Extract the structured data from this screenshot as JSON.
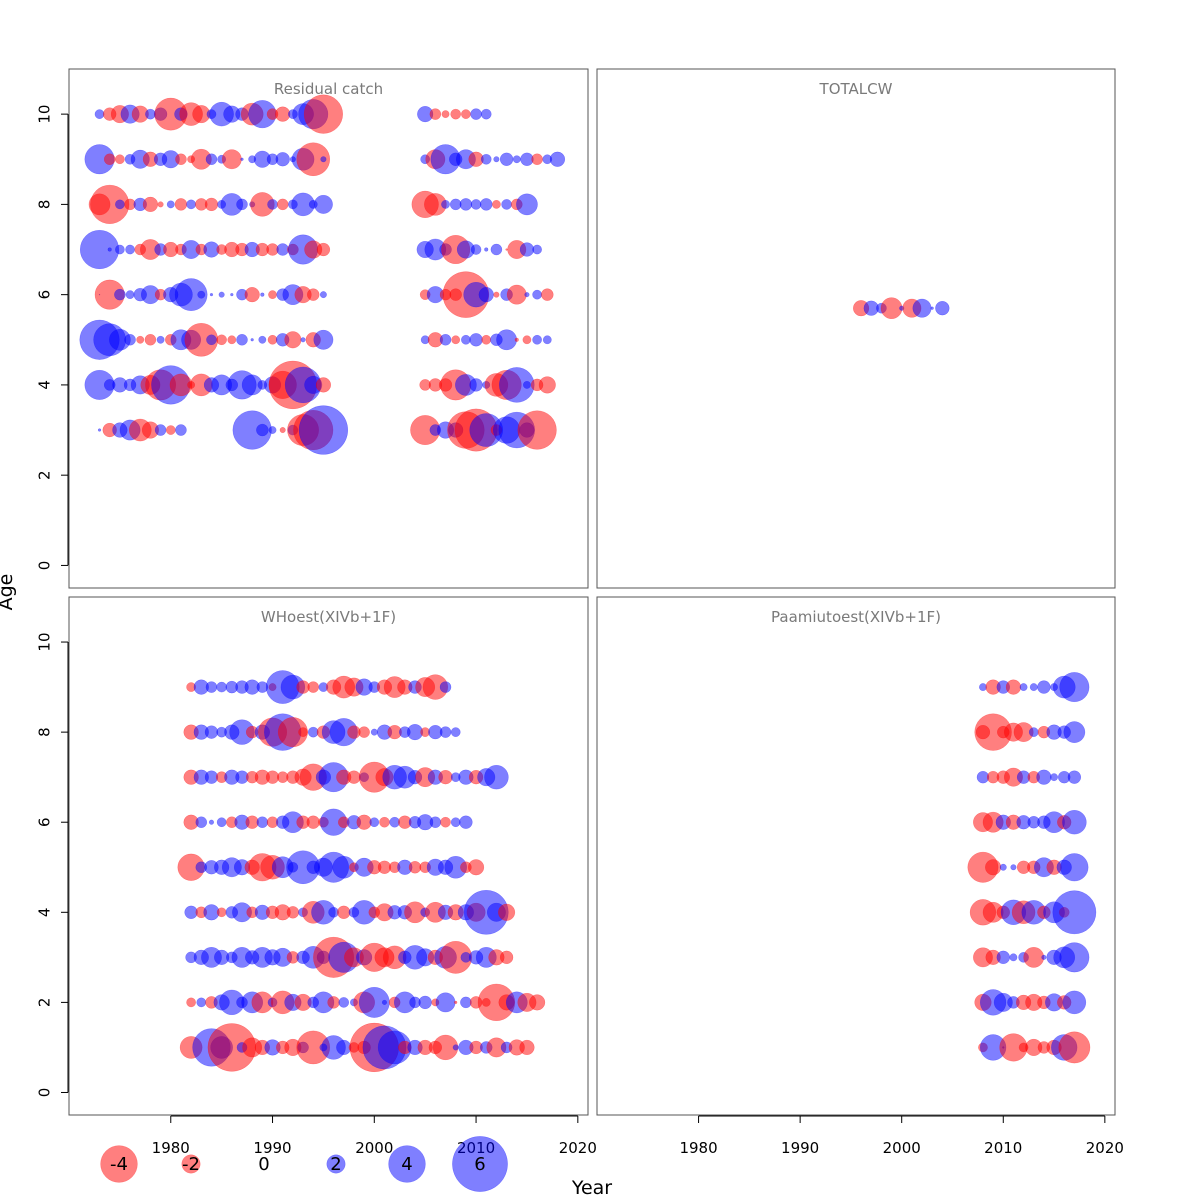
{
  "chart_data": {
    "type": "scatter",
    "subtype": "bubble",
    "xlabel": "Year",
    "ylabel": "Age",
    "xlim": [
      1970,
      2021
    ],
    "ylim": [
      -0.5,
      11
    ],
    "x_ticks": [
      1980,
      1990,
      2000,
      2010,
      2020
    ],
    "y_ticks": [
      0,
      2,
      4,
      6,
      8,
      10
    ],
    "colors": {
      "negative": "#ff0000",
      "positive": "#0000ff",
      "opacity": 0.5
    },
    "layout": "2x2 panels",
    "legend": {
      "position": "bottom-left",
      "entries": [
        {
          "label": "-4",
          "value": -4
        },
        {
          "label": "-2",
          "value": -2
        },
        {
          "label": "0",
          "value": 0
        },
        {
          "label": "2",
          "value": 2
        },
        {
          "label": "4",
          "value": 4
        },
        {
          "label": "6",
          "value": 6
        }
      ]
    },
    "panels": [
      {
        "title": "Residual catch",
        "ages": [
          3,
          4,
          5,
          6,
          7,
          8,
          9,
          10
        ],
        "segments": [
          [
            1973,
            1995
          ],
          [
            2005,
            2018
          ]
        ],
        "residuals": [
          [
            0.3,
            -1.5,
            1.6,
            2.2,
            -2.4,
            -1.8,
            1.2,
            -1.0,
            1.2,
            0,
            0,
            0,
            0,
            0,
            0,
            4.2,
            1.3,
            0.8,
            -0.6,
            1.1,
            -3.4,
            -4.3,
            5.3,
            -3.2,
            1.2,
            1.8,
            1.6,
            -4.0,
            -4.6,
            3.6,
            -1.2,
            2.9,
            3.9,
            1.6,
            -4.2
          ],
          [
            3.2,
            1.2,
            1.6,
            1.3,
            2.0,
            -2.1,
            -3.3,
            4.2,
            -2.4,
            -0.8,
            -2.4,
            1.6,
            2.2,
            1.3,
            3.1,
            2.2,
            1.0,
            1.8,
            -3.0,
            -5.2,
            3.9,
            1.9,
            -1.6,
            -1.2,
            -1.4,
            -1.4,
            -3.3,
            2.3,
            1.4,
            0.8,
            -2.5,
            -3.2,
            3.8,
            0.8,
            -1.3,
            -1.8
          ],
          [
            4.3,
            3.5,
            2.3,
            1.2,
            -0.8,
            -1.2,
            0.8,
            -1.2,
            2.2,
            2.1,
            -3.6,
            1.1,
            -1.1,
            -0.9,
            1.2,
            0.3,
            0.8,
            -1.0,
            1.4,
            -1.8,
            0.5,
            -1.6,
            2.1,
            0.9,
            -1.6,
            1.2,
            -0.9,
            1.0,
            1.4,
            -1.0,
            1.3,
            2.2,
            -0.4,
            -0.9,
            1.0,
            0.9
          ],
          [
            0.1,
            -3.2,
            1.2,
            0.9,
            1.4,
            2.0,
            -1.2,
            1.6,
            2.5,
            3.5,
            0.8,
            0.3,
            0.6,
            0.3,
            1.2,
            -1.6,
            0.4,
            -0.9,
            1.3,
            2.2,
            -1.8,
            -1.3,
            0.7,
            -1.1,
            1.8,
            -1.2,
            -1.3,
            -5.0,
            2.7,
            1.6,
            -0.6,
            1.3,
            -2.1,
            0.5,
            1.0,
            -1.3
          ],
          [
            4.2,
            0.4,
            1.0,
            1.0,
            -1.2,
            -2.2,
            1.3,
            -1.6,
            -1.2,
            2.0,
            -1.2,
            1.7,
            -1.1,
            -1.6,
            -1.4,
            1.6,
            -1.4,
            -1.3,
            1.3,
            -1.2,
            3.2,
            -1.9,
            -1.4,
            1.8,
            2.3,
            1.3,
            -3.1,
            1.9,
            1.1,
            0.4,
            1.2,
            -0.2,
            -2.0,
            1.5,
            1.0
          ],
          [
            -2.3,
            -4.2,
            1.0,
            -1.2,
            1.4,
            -1.6,
            -0.6,
            0.8,
            -1.3,
            1.0,
            -1.3,
            -1.4,
            0.9,
            2.4,
            1.2,
            0.6,
            -2.6,
            1.1,
            -1.2,
            1.0,
            2.5,
            0.9,
            2.0,
            -2.9,
            -2.4,
            0.9,
            1.2,
            1.3,
            1.1,
            1.3,
            -0.9,
            1.1,
            -1.2,
            2.3
          ],
          [
            3.2,
            -1.2,
            -1.0,
            1.1,
            2.0,
            -1.6,
            1.4,
            1.9,
            -1.2,
            -0.8,
            -2.2,
            1.2,
            0.9,
            -2.1,
            0.3,
            0.8,
            1.8,
            1.2,
            1.5,
            0.6,
            2.4,
            -3.6,
            0.6,
            1.0,
            -2.1,
            3.2,
            1.4,
            2.1,
            -1.6,
            1.1,
            0.6,
            1.4,
            0.8,
            1.4,
            -1.2,
            1.0,
            1.6
          ],
          [
            1.0,
            -1.4,
            -1.9,
            2.0,
            -1.8,
            1.1,
            1.4,
            -3.5,
            1.4,
            -2.5,
            -1.9,
            1.0,
            2.6,
            1.8,
            1.4,
            -2.4,
            3.0,
            -1.2,
            -1.6,
            1.0,
            2.3,
            3.2,
            -4.2,
            1.7,
            -1.2,
            -0.8,
            -1.1,
            -1.0,
            1.2,
            1.1
          ]
        ]
      },
      {
        "title": "TOTALCW",
        "ages": [
          5.7
        ],
        "segments": [
          [
            1996,
            2004
          ]
        ],
        "residuals": [
          [
            -1.7,
            1.6,
            1.1,
            -2.3,
            0.5,
            -2.0,
            2.0,
            0.3,
            1.5
          ]
        ]
      },
      {
        "title": "WHoest(XIVb+1F)",
        "ages": [
          1,
          2,
          3,
          4,
          5,
          6,
          7,
          8,
          9
        ],
        "segments": [
          [
            1982,
            2017
          ]
        ],
        "residuals": [
          [
            -2.4,
            0,
            4.1,
            2.4,
            -5.2,
            1.1,
            -2.1,
            -1.6,
            1.7,
            -1.4,
            -1.8,
            1.2,
            -3.6,
            0.8,
            2.6,
            1.6,
            -1.1,
            -1.4,
            -5.3,
            4.7,
            3.6,
            -1.4,
            1.6,
            -1.6,
            -1.4,
            -2.7,
            0.6,
            1.6,
            -1.4,
            1.3,
            -2.1,
            1.2,
            -1.7,
            -1.6
          ],
          [
            -1.0,
            1.0,
            -1.3,
            1.7,
            2.7,
            1.2,
            2.3,
            -2.3,
            1.0,
            -2.5,
            1.8,
            -1.8,
            1.2,
            2.3,
            -1.3,
            1.1,
            0.8,
            -2.3,
            3.3,
            0.5,
            -1.2,
            2.3,
            1.2,
            1.4,
            -0.8,
            2.1,
            -0.3,
            1.2,
            -1.3,
            -0.9,
            -4.0,
            -1.7,
            2.3,
            -2.0,
            -1.7
          ],
          [
            1.2,
            1.6,
            2.2,
            1.6,
            1.2,
            2.2,
            1.5,
            2.2,
            1.7,
            2.0,
            -1.3,
            1.4,
            2.4,
            1.4,
            -4.4,
            3.3,
            -2.1,
            1.7,
            -3.1,
            -2.1,
            -2.5,
            1.4,
            2.6,
            1.9,
            -1.6,
            2.4,
            -3.5,
            1.1,
            1.5,
            2.2,
            -1.7,
            -1.4
          ],
          [
            1.4,
            -1.2,
            1.7,
            -1.0,
            1.3,
            2.1,
            -1.2,
            1.6,
            -1.4,
            -1.7,
            -1.3,
            1.0,
            -2.4,
            2.6,
            1.1,
            -1.4,
            1.1,
            2.6,
            -1.2,
            -1.9,
            1.5,
            1.5,
            -2.3,
            1.0,
            -2.2,
            1.6,
            -1.7,
            1.7,
            -2.0,
            4.8,
            2.0,
            -1.8
          ],
          [
            -2.9,
            1.2,
            1.5,
            1.6,
            2.1,
            1.7,
            -1.6,
            -3.0,
            -2.6,
            2.3,
            1.1,
            3.6,
            1.4,
            2.0,
            3.3,
            2.4,
            -1.0,
            2.0,
            -1.5,
            -1.4,
            -1.2,
            1.6,
            -1.3,
            -1.2,
            1.8,
            1.6,
            2.4,
            -1.2,
            -1.7
          ],
          [
            -1.6,
            1.2,
            0.5,
            1.0,
            -1.2,
            1.6,
            -1.4,
            1.2,
            -1.2,
            1.4,
            2.3,
            -1.4,
            -1.4,
            -1.1,
            2.9,
            -1.2,
            1.5,
            -1.6,
            1.0,
            -1.1,
            1.1,
            -1.4,
            1.3,
            1.7,
            1.2,
            -1.1,
            1.0,
            1.4
          ],
          [
            -1.6,
            1.6,
            1.4,
            -1.2,
            1.6,
            1.4,
            -1.3,
            -1.6,
            -1.4,
            -1.2,
            -1.4,
            -1.8,
            -2.9,
            1.6,
            3.2,
            -1.6,
            -1.4,
            1.0,
            -3.3,
            -1.9,
            2.6,
            2.4,
            1.5,
            -2.1,
            1.6,
            -1.5,
            1.0,
            1.6,
            -1.5,
            1.9,
            2.6
          ],
          [
            -1.6,
            1.6,
            1.4,
            1.1,
            1.6,
            2.7,
            -1.3,
            1.6,
            -3.1,
            4.0,
            -3.2,
            -1.0,
            1.1,
            -1.4,
            2.5,
            3.0,
            -1.4,
            -1.2,
            0.7,
            1.6,
            -1.5,
            1.2,
            1.7,
            -1.0,
            1.5,
            1.2,
            1.0
          ],
          [
            -1.0,
            1.6,
            1.2,
            1.1,
            1.3,
            1.4,
            1.6,
            1.2,
            -0.8,
            3.6,
            2.6,
            -1.4,
            -1.2,
            1.0,
            -1.6,
            -2.4,
            -2.0,
            1.8,
            1.2,
            -1.6,
            -2.3,
            -1.6,
            1.4,
            -2.1,
            -2.7,
            1.2
          ]
        ]
      },
      {
        "title": "Paamiutoest(XIVb+1F)",
        "ages": [
          1,
          2,
          3,
          4,
          5,
          6,
          7,
          8,
          9
        ],
        "segments": [
          [
            2008,
            2017
          ]
        ],
        "residuals": [
          [
            -1.0,
            2.8,
            0.2,
            -3.0,
            -1.0,
            -1.8,
            -1.3,
            -1.6,
            2.8,
            -3.4
          ],
          [
            -1.8,
            2.8,
            2.0,
            1.3,
            -1.6,
            -1.8,
            -1.4,
            1.9,
            -1.5,
            2.5
          ],
          [
            -2.1,
            -1.6,
            1.4,
            0.8,
            1.1,
            -2.2,
            0.5,
            1.6,
            2.3,
            3.2
          ],
          [
            -2.8,
            -2.2,
            -1.4,
            2.7,
            -2.5,
            2.6,
            -1.4,
            2.3,
            -1.1,
            4.7
          ],
          [
            -3.3,
            -1.7,
            0.7,
            0.6,
            -1.4,
            -1.4,
            2.1,
            -1.6,
            1.6,
            3.0
          ],
          [
            -2.1,
            -2.2,
            1.6,
            -1.6,
            1.5,
            1.3,
            1.4,
            2.3,
            -1.5,
            2.6
          ],
          [
            1.3,
            -1.3,
            -1.4,
            -2.0,
            1.4,
            -1.3,
            1.6,
            0.8,
            1.3,
            1.4
          ],
          [
            -1.5,
            -4.0,
            -1.3,
            -2.0,
            -2.1,
            1.0,
            -1.3,
            1.6,
            1.4,
            2.3
          ],
          [
            0.8,
            -1.6,
            1.4,
            -1.6,
            0.8,
            0.8,
            1.4,
            0.8,
            2.4,
            3.2
          ]
        ]
      }
    ]
  }
}
